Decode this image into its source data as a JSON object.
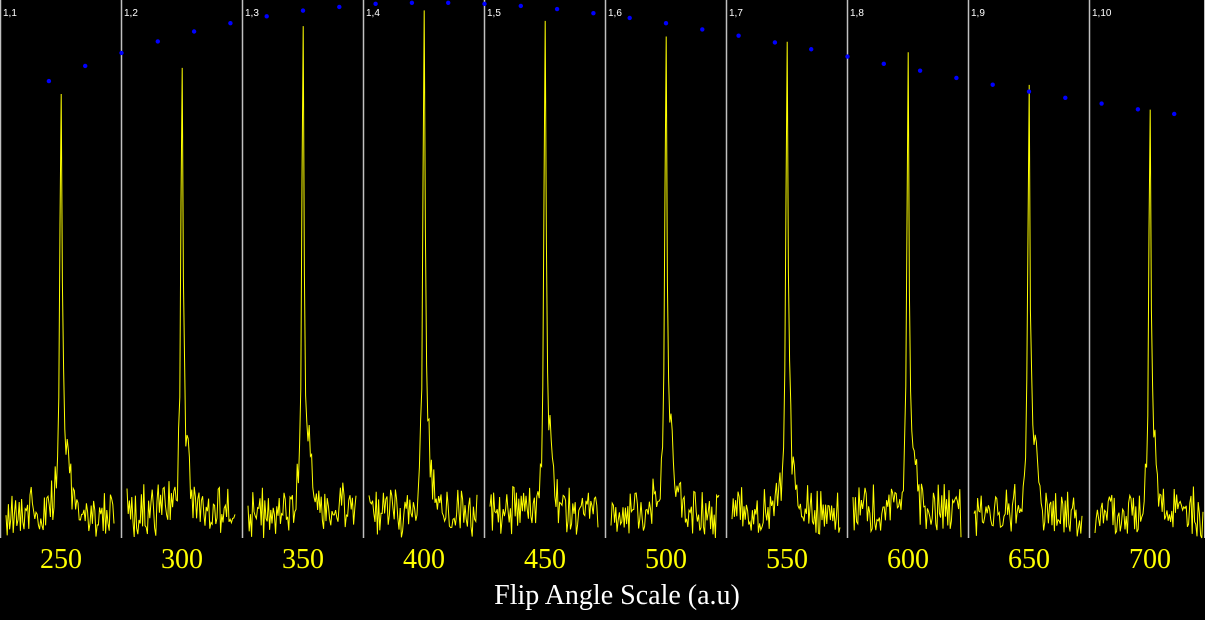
{
  "chart_data": {
    "type": "line",
    "xlabel": "Flip Angle Scale (a.u)",
    "tick_labels": [
      "250",
      "300",
      "350",
      "400",
      "450",
      "500",
      "550",
      "600",
      "650",
      "700"
    ],
    "panels": [
      {
        "label": "1,1",
        "flip_angle": 250,
        "peak": 0.82
      },
      {
        "label": "1,2",
        "flip_angle": 300,
        "peak": 0.87
      },
      {
        "label": "1,3",
        "flip_angle": 350,
        "peak": 0.95
      },
      {
        "label": "1,4",
        "flip_angle": 400,
        "peak": 0.98
      },
      {
        "label": "1,5",
        "flip_angle": 450,
        "peak": 0.96
      },
      {
        "label": "1,6",
        "flip_angle": 500,
        "peak": 0.93
      },
      {
        "label": "1,7",
        "flip_angle": 550,
        "peak": 0.92
      },
      {
        "label": "1,8",
        "flip_angle": 600,
        "peak": 0.9
      },
      {
        "label": "1,9",
        "flip_angle": 650,
        "peak": 0.85
      },
      {
        "label": "1,10",
        "flip_angle": 700,
        "peak": 0.79
      }
    ],
    "envelope": {
      "x": [
        245,
        260,
        275,
        290,
        305,
        320,
        335,
        350,
        365,
        380,
        395,
        410,
        425,
        440,
        455,
        470,
        485,
        500,
        515,
        530,
        545,
        560,
        575,
        590,
        605,
        620,
        635,
        650,
        665,
        680,
        695,
        710
      ],
      "y": [
        0.837,
        0.866,
        0.891,
        0.913,
        0.932,
        0.948,
        0.961,
        0.972,
        0.979,
        0.985,
        0.987,
        0.987,
        0.985,
        0.981,
        0.975,
        0.967,
        0.958,
        0.948,
        0.936,
        0.924,
        0.911,
        0.898,
        0.884,
        0.87,
        0.857,
        0.843,
        0.83,
        0.817,
        0.805,
        0.794,
        0.783,
        0.774
      ]
    },
    "colors": {
      "background": "#000000",
      "spectrum": "#ffff00",
      "envelope": "#0000ff",
      "divider": "#c0c0c0",
      "panel_label": "#ffffff",
      "tick_label": "#ffff00",
      "axis_title": "#ffffff"
    },
    "grid": false,
    "legend": "none"
  }
}
